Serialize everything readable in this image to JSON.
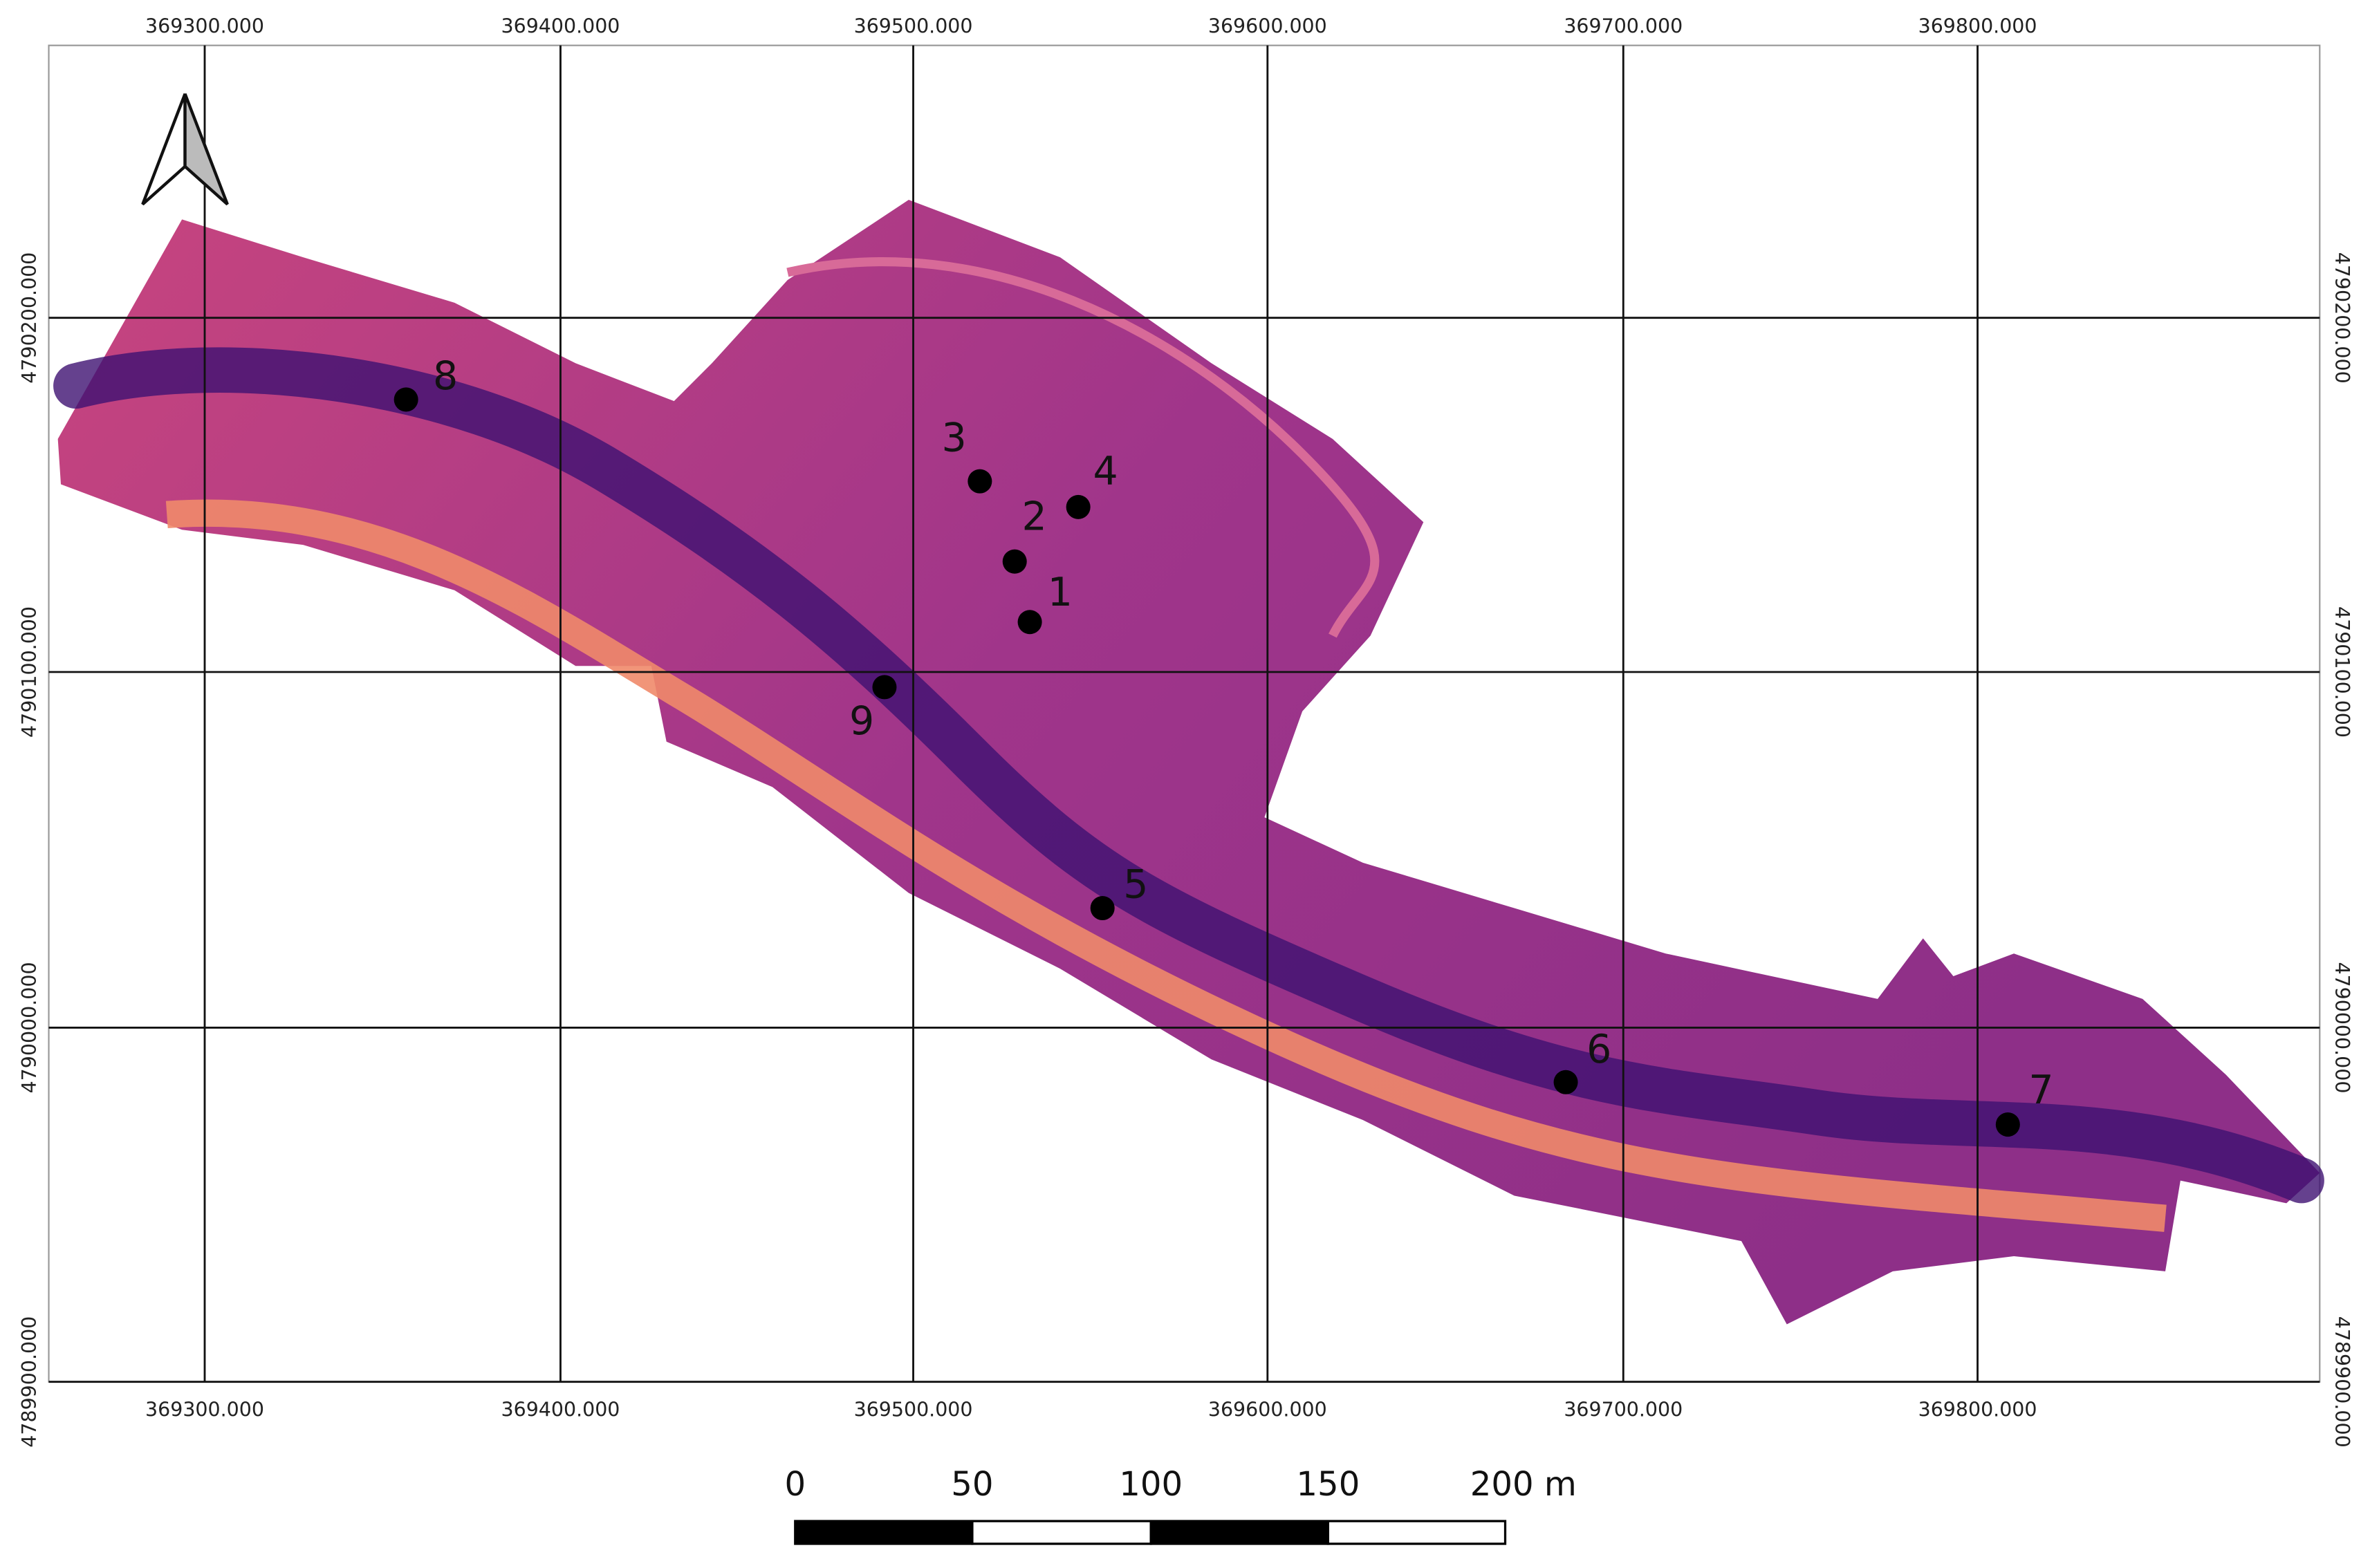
{
  "grid": {
    "x_labels": [
      "369300.000",
      "369400.000",
      "369500.000",
      "369600.000",
      "369700.000",
      "369800.000"
    ],
    "y_labels": [
      "4790200.000",
      "4790100.000",
      "4790000.000",
      "4789900.000"
    ]
  },
  "points": [
    {
      "label": "1"
    },
    {
      "label": "2"
    },
    {
      "label": "3"
    },
    {
      "label": "4"
    },
    {
      "label": "5"
    },
    {
      "label": "6"
    },
    {
      "label": "7"
    },
    {
      "label": "8"
    },
    {
      "label": "9"
    }
  ],
  "scale_bar": {
    "labels": [
      "0",
      "50",
      "100",
      "150",
      "200 m"
    ]
  }
}
